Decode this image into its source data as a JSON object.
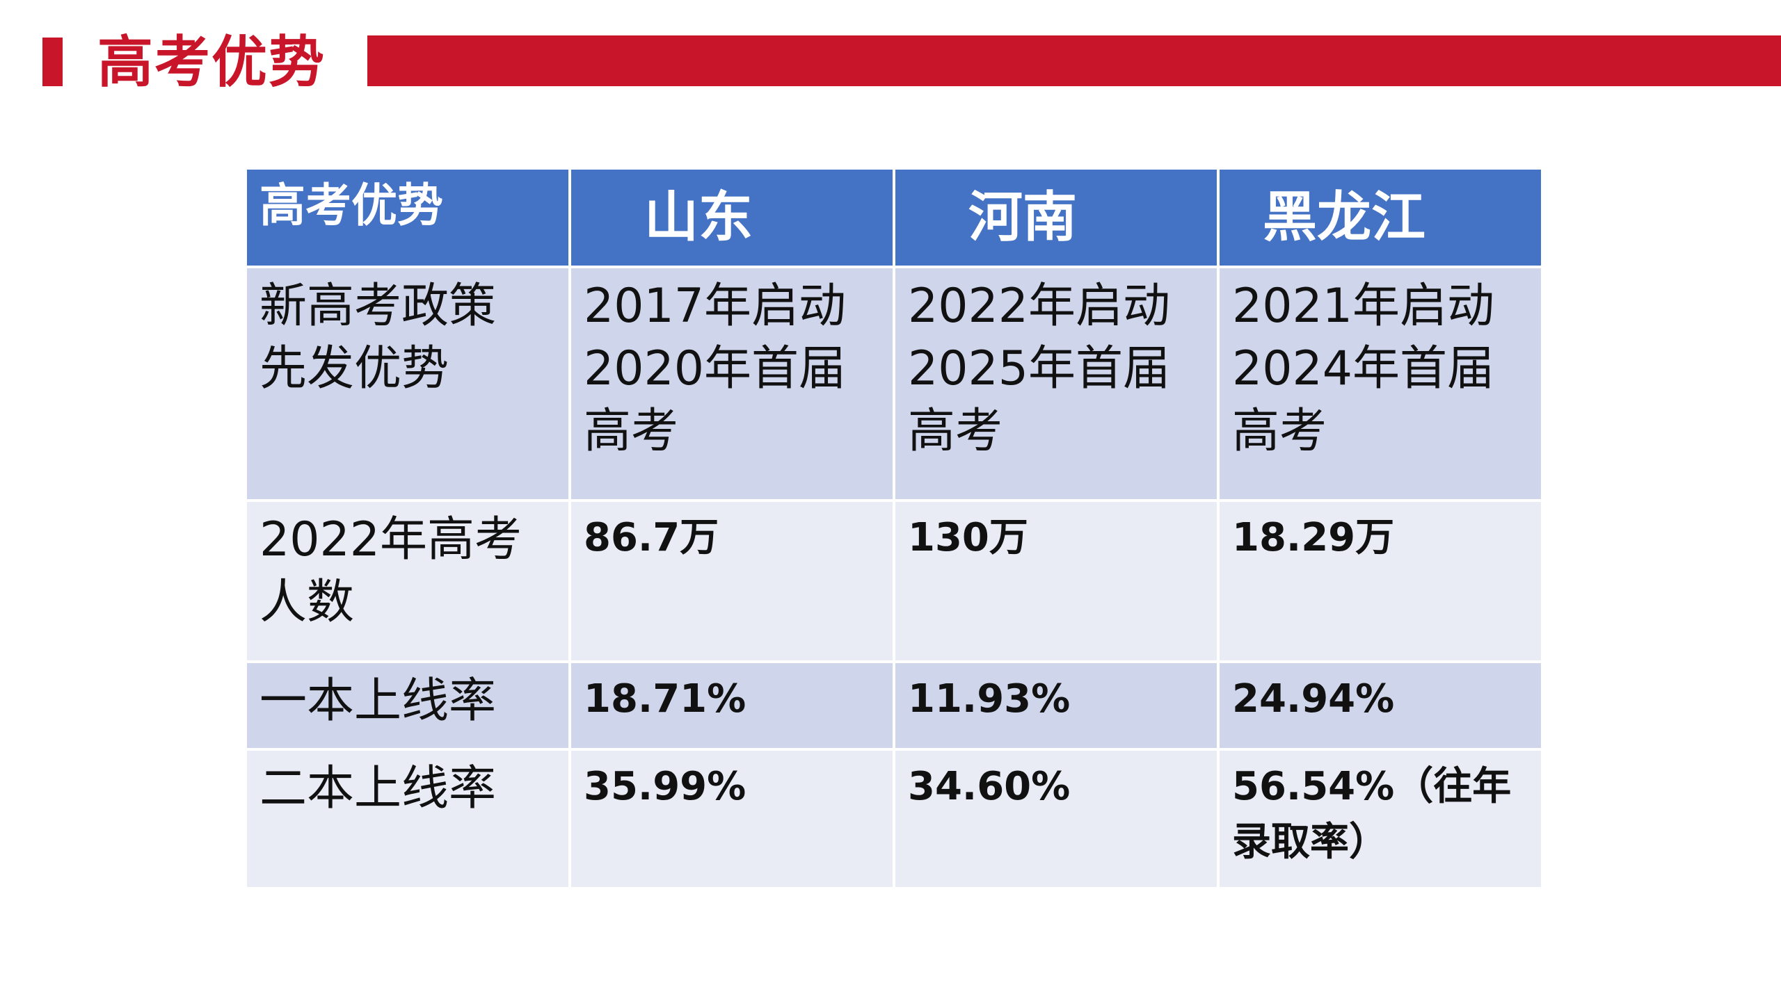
{
  "slide": {
    "title": "高考优势"
  },
  "table": {
    "corner": "高考优势",
    "regions": [
      "山东",
      "河南",
      "黑龙江"
    ],
    "rows": [
      {
        "label": "新高考政策\n先发优势",
        "cells": [
          "2017年启动\n2020年首届\n高考",
          "2022年启动\n2025年首届\n高考",
          "2021年启动\n2024年首届\n高考"
        ]
      },
      {
        "label": "2022年高考\n人数",
        "cells": [
          "86.7万",
          "130万",
          "18.29万"
        ]
      },
      {
        "label": "一本上线率",
        "cells": [
          "18.71%",
          "11.93%",
          "24.94%"
        ]
      },
      {
        "label": "二本上线率",
        "cells": [
          "35.99%",
          "34.60%",
          "56.54%（往年\n录取率）"
        ]
      }
    ]
  },
  "colors": {
    "accent_red": "#c8152a",
    "header_blue": "#4472c4",
    "row_dark": "#cfd5ea",
    "row_light": "#e9ebf5"
  }
}
